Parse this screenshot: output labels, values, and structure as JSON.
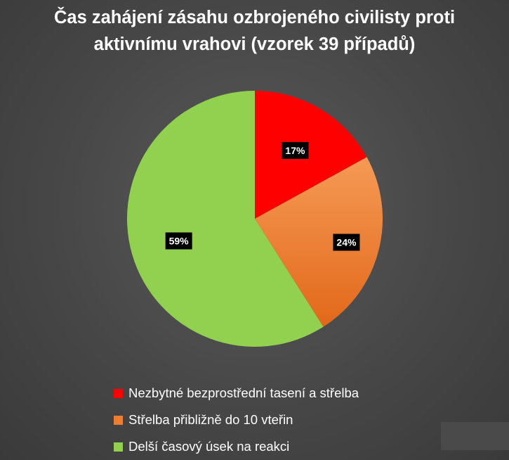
{
  "chart_data": {
    "type": "pie",
    "title_lines": [
      "Čas zahájení zásahu ozbrojeného civilisty proti",
      "aktivnímu vrahovi (vzorek 39 případů)"
    ],
    "slices": [
      {
        "label": "Nezbytné bezprostřední tasení a střelba",
        "value": 17,
        "display": "17%",
        "color": "#ff0000"
      },
      {
        "label": "Střelba přibližně do 10 vteřin",
        "value": 24,
        "display": "24%",
        "color": "#ed7d31"
      },
      {
        "label": "Delší časový úsek na reakci",
        "value": 59,
        "display": "59%",
        "color": "#92d050"
      }
    ],
    "start_angle": "12 o'clock",
    "direction": "clockwise",
    "legend_position": "bottom"
  }
}
